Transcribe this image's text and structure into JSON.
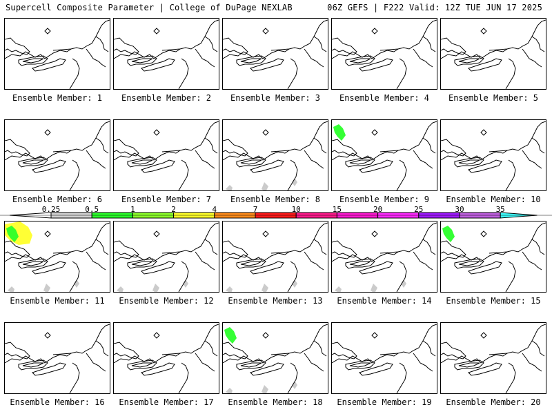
{
  "header": {
    "left": "Supercell Composite Parameter | College of DuPage NEXLAB",
    "right": "06Z GEFS | F222 Valid: 12Z TUE JUN 17 2025"
  },
  "members": [
    {
      "label": "Ensemble Member: 1",
      "blobs": []
    },
    {
      "label": "Ensemble Member: 2",
      "blobs": []
    },
    {
      "label": "Ensemble Member: 3",
      "blobs": []
    },
    {
      "label": "Ensemble Member: 4",
      "blobs": []
    },
    {
      "label": "Ensemble Member: 5",
      "blobs": []
    },
    {
      "label": "Ensemble Member: 6",
      "blobs": []
    },
    {
      "label": "Ensemble Member: 7",
      "blobs": []
    },
    {
      "label": "Ensemble Member: 8",
      "blobs": [
        "lightgray"
      ]
    },
    {
      "label": "Ensemble Member: 9",
      "blobs": [
        "green"
      ]
    },
    {
      "label": "Ensemble Member: 10",
      "blobs": []
    },
    {
      "label": "Ensemble Member: 11",
      "blobs": [
        "yellow",
        "green",
        "lightgray"
      ]
    },
    {
      "label": "Ensemble Member: 12",
      "blobs": [
        "lightgray"
      ]
    },
    {
      "label": "Ensemble Member: 13",
      "blobs": [
        "lightgray"
      ]
    },
    {
      "label": "Ensemble Member: 14",
      "blobs": [
        "lightgray"
      ]
    },
    {
      "label": "Ensemble Member: 15",
      "blobs": [
        "green"
      ]
    },
    {
      "label": "Ensemble Member: 16",
      "blobs": []
    },
    {
      "label": "Ensemble Member: 17",
      "blobs": []
    },
    {
      "label": "Ensemble Member: 18",
      "blobs": [
        "green",
        "lightgray"
      ]
    },
    {
      "label": "Ensemble Member: 19",
      "blobs": []
    },
    {
      "label": "Ensemble Member: 20",
      "blobs": []
    }
  ],
  "colorbar": {
    "ticks": [
      "0.25",
      "0.5",
      "1",
      "2",
      "4",
      "7",
      "10",
      "15",
      "20",
      "25",
      "30",
      "35"
    ],
    "colors": [
      "#d2d2d2",
      "#2aff2a",
      "#8cff2a",
      "#ffff2a",
      "#ff8c1a",
      "#ff1a1a",
      "#ff1a8c",
      "#ff1ad2",
      "#ff2aff",
      "#a01aff",
      "#c060e0",
      "#40ffff"
    ]
  }
}
